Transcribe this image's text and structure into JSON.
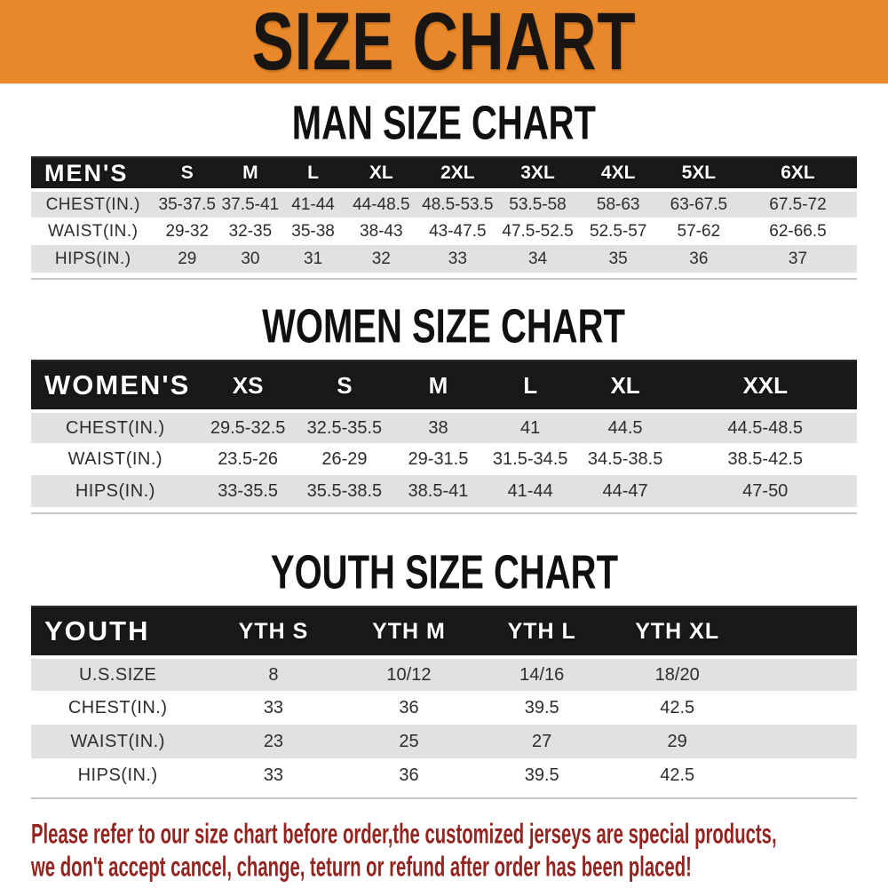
{
  "banner": {
    "title": "SIZE CHART"
  },
  "colors": {
    "banner_bg": "#E8882A",
    "header_bg": "#191919",
    "row_alt": "#E1E1E1",
    "cell_text": "#2D2D2D",
    "note_red": "#942420"
  },
  "sections": [
    {
      "heading": "MAN SIZE CHART",
      "corner": "MEN'S",
      "sizes": [
        "S",
        "M",
        "L",
        "XL",
        "2XL",
        "3XL",
        "4XL",
        "5XL",
        "6XL"
      ],
      "rows": [
        {
          "label": "CHEST(IN.)",
          "values": [
            "35-37.5",
            "37.5-41",
            "41-44",
            "44-48.5",
            "48.5-53.5",
            "53.5-58",
            "58-63",
            "63-67.5",
            "67.5-72"
          ]
        },
        {
          "label": "WAIST(IN.)",
          "values": [
            "29-32",
            "32-35",
            "35-38",
            "38-43",
            "43-47.5",
            "47.5-52.5",
            "52.5-57",
            "57-62",
            "62-66.5"
          ]
        },
        {
          "label": "HIPS(IN.)",
          "values": [
            "29",
            "30",
            "31",
            "32",
            "33",
            "34",
            "35",
            "36",
            "37"
          ]
        }
      ]
    },
    {
      "heading": "WOMEN SIZE CHART",
      "corner": "WOMEN'S",
      "sizes": [
        "XS",
        "S",
        "M",
        "L",
        "XL",
        "XXL"
      ],
      "rows": [
        {
          "label": "CHEST(IN.)",
          "values": [
            "29.5-32.5",
            "32.5-35.5",
            "38",
            "41",
            "44.5",
            "44.5-48.5"
          ]
        },
        {
          "label": "WAIST(IN.)",
          "values": [
            "23.5-26",
            "26-29",
            "29-31.5",
            "31.5-34.5",
            "34.5-38.5",
            "38.5-42.5"
          ]
        },
        {
          "label": "HIPS(IN.)",
          "values": [
            "33-35.5",
            "35.5-38.5",
            "38.5-41",
            "41-44",
            "44-47",
            "47-50"
          ]
        }
      ]
    },
    {
      "heading": "YOUTH SIZE CHART",
      "corner": "YOUTH",
      "sizes": [
        "YTH S",
        "YTH M",
        "YTH L",
        "YTH XL"
      ],
      "rows": [
        {
          "label": "U.S.SIZE",
          "values": [
            "8",
            "10/12",
            "14/16",
            "18/20"
          ]
        },
        {
          "label": "CHEST(IN.)",
          "values": [
            "33",
            "36",
            "39.5",
            "42.5"
          ]
        },
        {
          "label": "WAIST(IN.)",
          "values": [
            "23",
            "25",
            "27",
            "29"
          ]
        },
        {
          "label": "HIPS(IN.)",
          "values": [
            "33",
            "36",
            "39.5",
            "42.5"
          ]
        }
      ]
    }
  ],
  "note": {
    "line1": "Please refer to our size chart before order,the customized jerseys are special products,",
    "line2": "we don't accept cancel, change, teturn or refund after order has been placed!"
  }
}
